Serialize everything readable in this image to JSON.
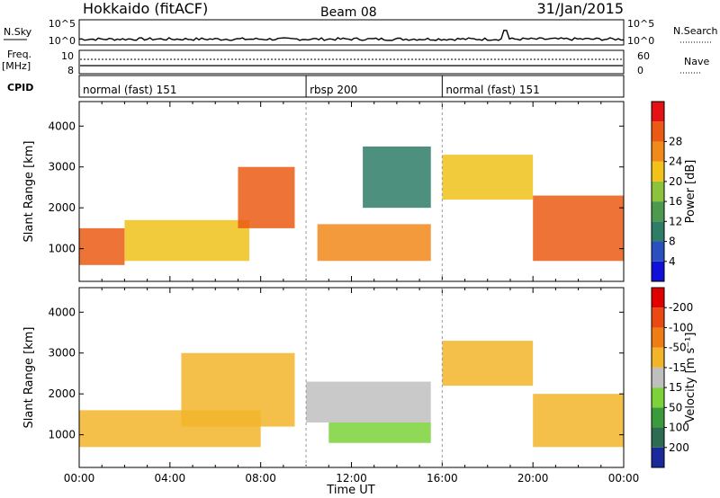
{
  "header": {
    "title": "Hokkaido (fitACF)",
    "beam": "Beam 08",
    "date": "31/Jan/2015"
  },
  "strips": {
    "nsky_label": "N.Sky",
    "nsearch_label": "N.Search",
    "nsky_ticks": [
      "10^5",
      "10^0"
    ],
    "freq_label": "Freq.",
    "freq_unit": "[MHz]",
    "freq_ticks": [
      "10",
      "8"
    ],
    "nave_label": "Nave",
    "nave_ticks": [
      "60",
      "0"
    ],
    "cpid_label": "CPID",
    "cpid_segments": [
      {
        "label": "normal (fast) 151",
        "start_hour": 0,
        "end_hour": 10
      },
      {
        "label": "rbsp 200",
        "start_hour": 10,
        "end_hour": 16
      },
      {
        "label": "normal (fast) 151",
        "start_hour": 16,
        "end_hour": 24
      }
    ]
  },
  "chart_data": [
    {
      "type": "heatmap",
      "title": "",
      "xlabel": "",
      "ylabel": "Slant Range [km]",
      "xlim": [
        0,
        24
      ],
      "ylim": [
        200,
        4600
      ],
      "yticks": [
        "1000",
        "2000",
        "3000",
        "4000"
      ],
      "colorbar": {
        "label": "Power [dB]",
        "ticks": [
          "4",
          "8",
          "12",
          "16",
          "20",
          "24",
          "28"
        ],
        "colors": [
          "#1010d8",
          "#2a4fbf",
          "#2e7d67",
          "#4b9a4e",
          "#8cc23c",
          "#f0c21a",
          "#f18a1a",
          "#ea5a14",
          "#e41212"
        ]
      },
      "bands": [
        {
          "start_hour": 0.0,
          "end_hour": 2.0,
          "range_min": 600,
          "range_max": 1500,
          "level": "28"
        },
        {
          "start_hour": 2.0,
          "end_hour": 7.5,
          "range_min": 700,
          "range_max": 1700,
          "level": "20"
        },
        {
          "start_hour": 7.0,
          "end_hour": 9.5,
          "range_min": 1500,
          "range_max": 3000,
          "level": "28"
        },
        {
          "start_hour": 10.5,
          "end_hour": 15.5,
          "range_min": 700,
          "range_max": 1600,
          "level": "24"
        },
        {
          "start_hour": 12.5,
          "end_hour": 15.5,
          "range_min": 2000,
          "range_max": 3500,
          "level": "8"
        },
        {
          "start_hour": 16.0,
          "end_hour": 20.0,
          "range_min": 2200,
          "range_max": 3300,
          "level": "20"
        },
        {
          "start_hour": 20.0,
          "end_hour": 24.0,
          "range_min": 700,
          "range_max": 2300,
          "level": "28"
        }
      ]
    },
    {
      "type": "heatmap",
      "title": "",
      "xlabel": "Time UT",
      "ylabel": "Slant Range [km]",
      "xlim": [
        0,
        24
      ],
      "ylim": [
        200,
        4600
      ],
      "xticks": [
        "00:00",
        "04:00",
        "08:00",
        "12:00",
        "16:00",
        "20:00",
        "00:00"
      ],
      "yticks": [
        "1000",
        "2000",
        "3000",
        "4000"
      ],
      "colorbar": {
        "label": "Velocity [m s⁻¹]",
        "ticks": [
          "200",
          "100",
          "50",
          "15",
          "-15",
          "-50",
          "-100",
          "-200"
        ],
        "colors": [
          "#1a2a9c",
          "#2d6b53",
          "#3b9b3c",
          "#7dd23a",
          "#bfbfbf",
          "#f2b52a",
          "#f07d14",
          "#ea4a12",
          "#e00000"
        ]
      },
      "bands": [
        {
          "start_hour": 0.0,
          "end_hour": 8.0,
          "range_min": 700,
          "range_max": 1600,
          "level": "-15"
        },
        {
          "start_hour": 4.5,
          "end_hour": 9.5,
          "range_min": 1200,
          "range_max": 3000,
          "level": "-15"
        },
        {
          "start_hour": 10.0,
          "end_hour": 15.5,
          "range_min": 1300,
          "range_max": 2300,
          "level": "15"
        },
        {
          "start_hour": 11.0,
          "end_hour": 15.5,
          "range_min": 800,
          "range_max": 1300,
          "level": "50"
        },
        {
          "start_hour": 16.0,
          "end_hour": 20.0,
          "range_min": 2200,
          "range_max": 3300,
          "level": "-15"
        },
        {
          "start_hour": 20.0,
          "end_hour": 24.0,
          "range_min": 700,
          "range_max": 2000,
          "level": "-15"
        }
      ]
    }
  ]
}
